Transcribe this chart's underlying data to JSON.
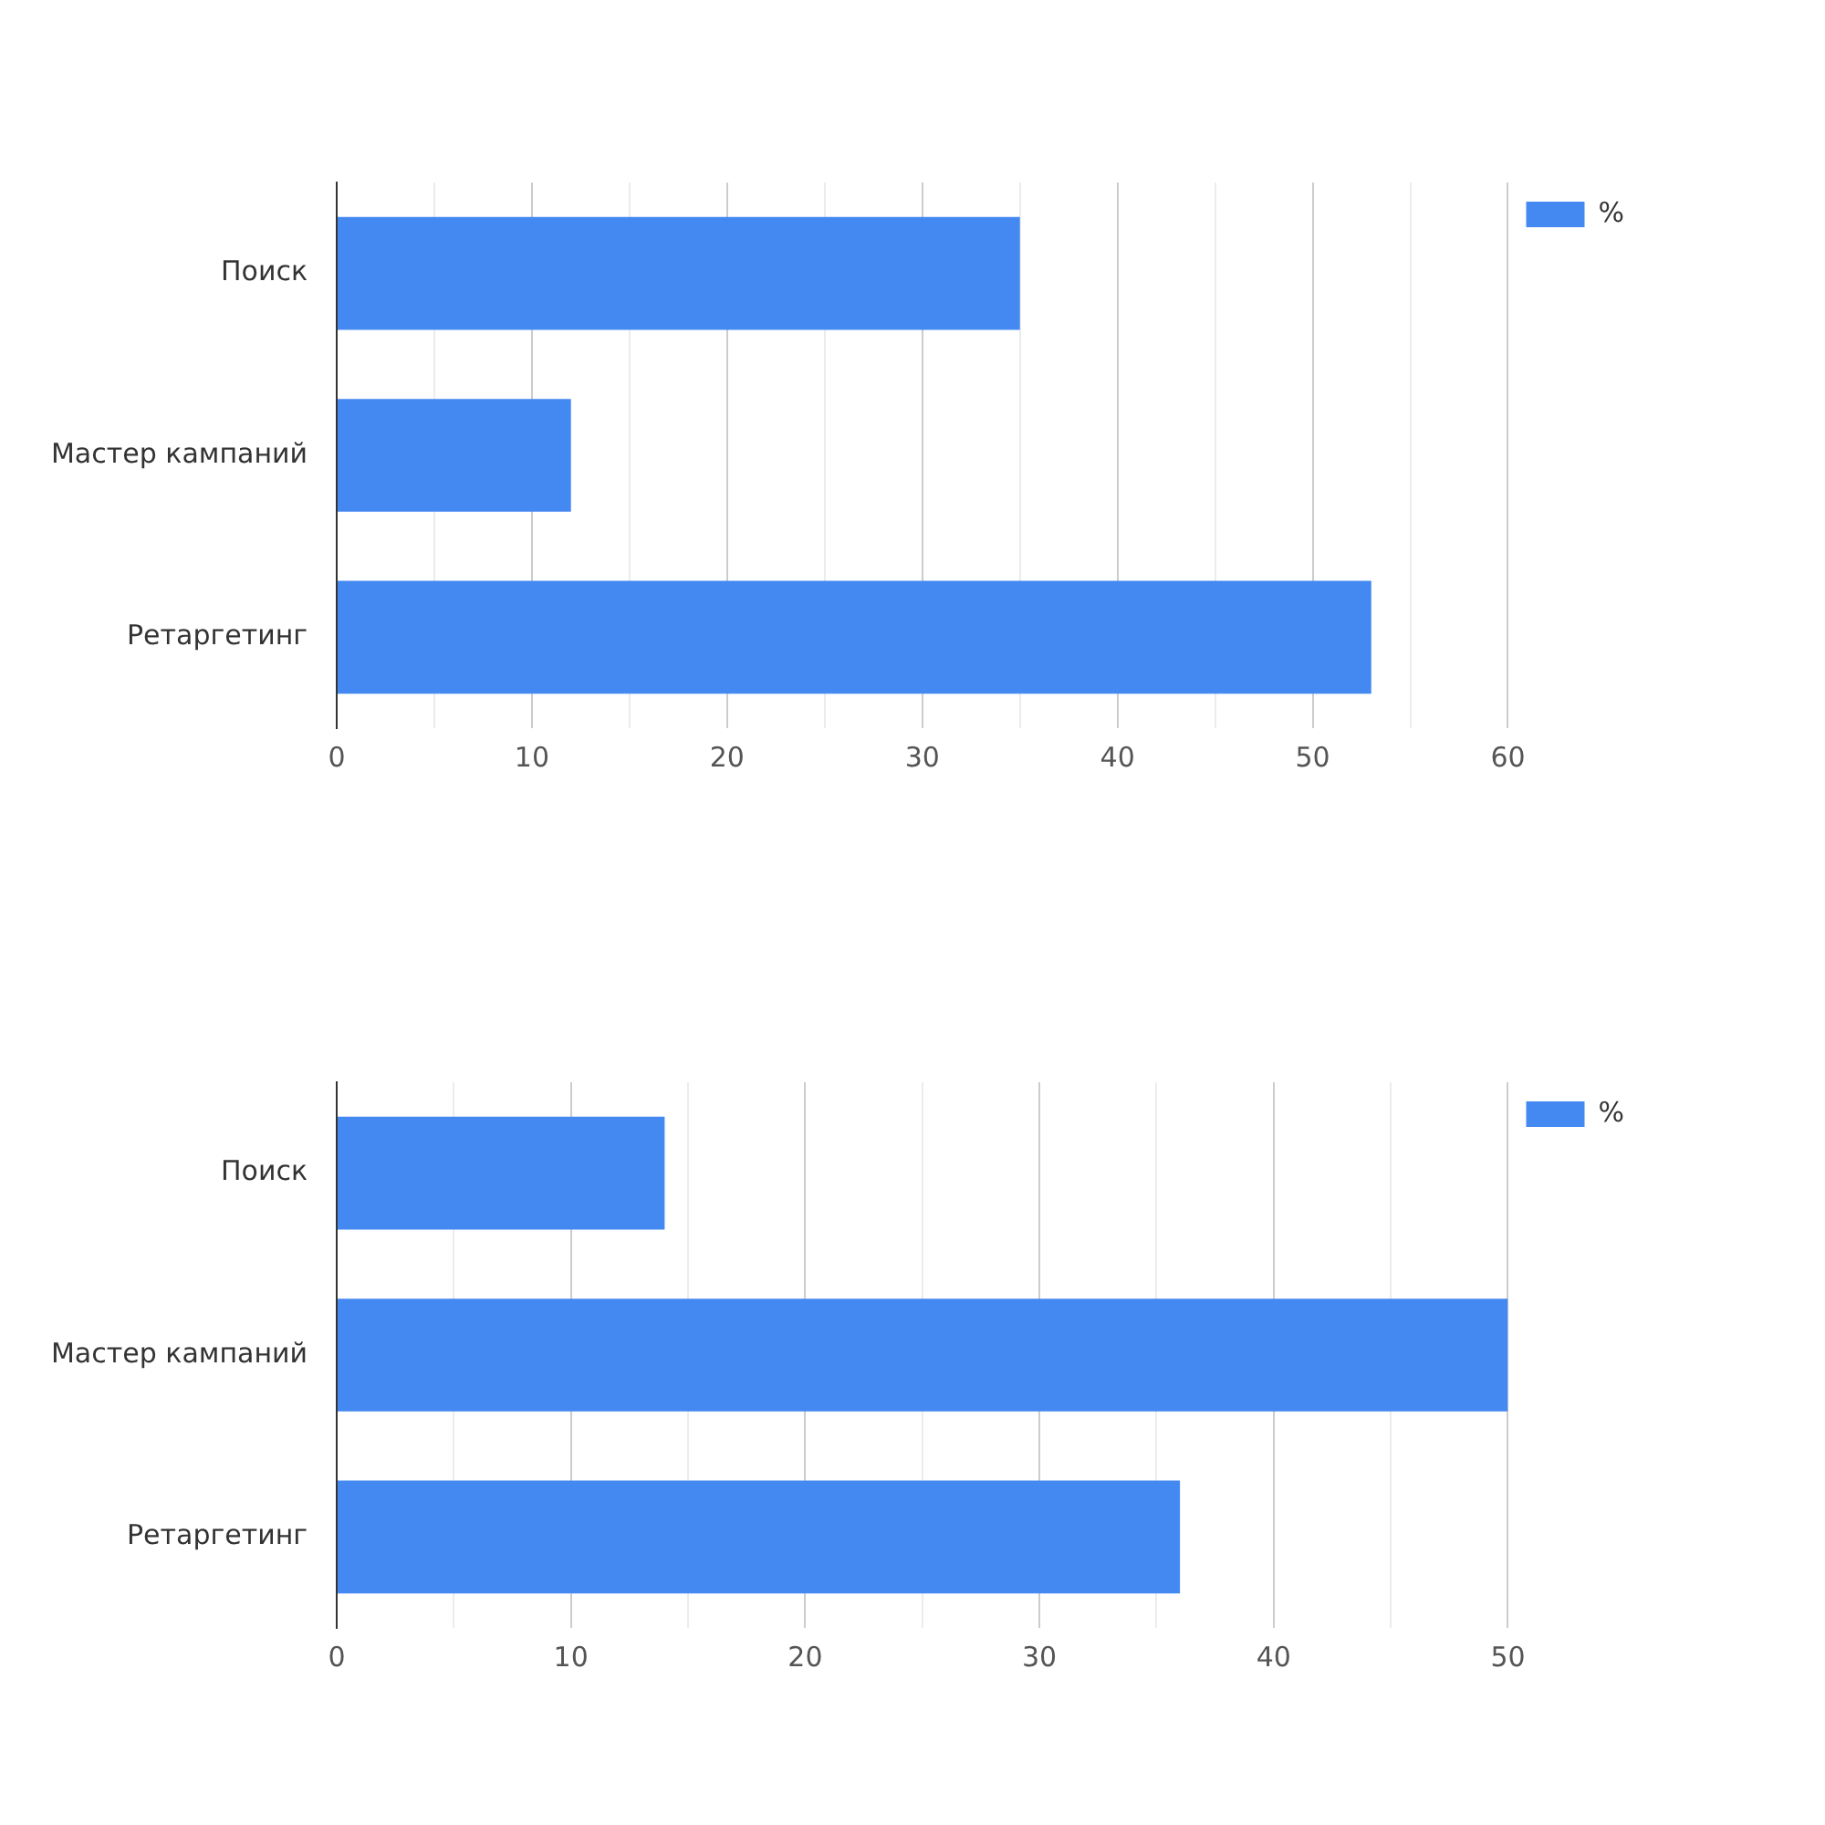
{
  "chart_data": [
    {
      "type": "bar",
      "orientation": "horizontal",
      "categories": [
        "Поиск",
        "Мастер кампаний",
        "Ретаргетинг"
      ],
      "series": [
        {
          "name": "%",
          "color": "#4489f2",
          "values": [
            35,
            12,
            53
          ]
        }
      ],
      "xlim": [
        0,
        60
      ],
      "xticks": [
        0,
        {
          "value": 5,
          "label": null
        },
        10,
        {
          "value": 15,
          "label": null
        },
        20,
        {
          "value": 25,
          "label": null
        },
        30,
        {
          "value": 35,
          "label": null
        },
        40,
        {
          "value": 45,
          "label": null
        },
        50,
        {
          "value": 55,
          "label": null
        },
        60
      ],
      "grid": "x",
      "legend": "top right"
    },
    {
      "type": "bar",
      "orientation": "horizontal",
      "categories": [
        "Поиск",
        "Мастер кампаний",
        "Ретаргетинг"
      ],
      "series": [
        {
          "name": "%",
          "color": "#4489f2",
          "values": [
            14,
            50,
            36
          ]
        }
      ],
      "xlim": [
        0,
        50
      ],
      "xticks": [
        0,
        {
          "value": 5,
          "label": null
        },
        10,
        {
          "value": 15,
          "label": null
        },
        20,
        {
          "value": 25,
          "label": null
        },
        30,
        {
          "value": 35,
          "label": null
        },
        40,
        {
          "value": 45,
          "label": null
        },
        50
      ],
      "grid": "x",
      "legend": "top right"
    }
  ]
}
